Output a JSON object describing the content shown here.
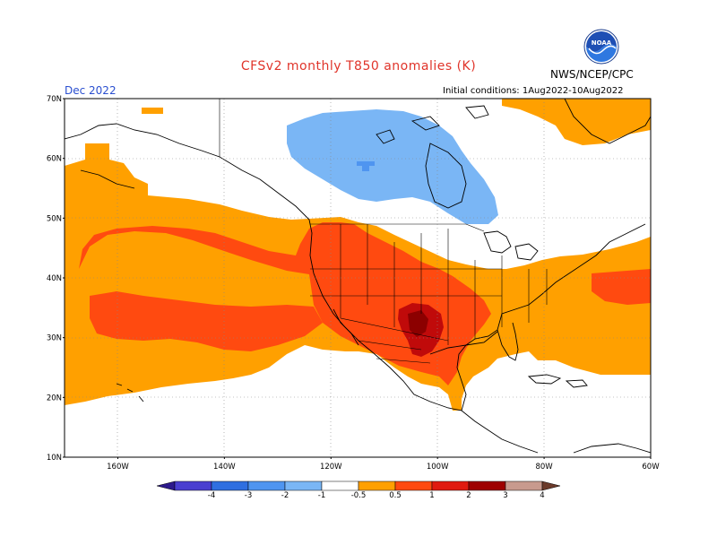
{
  "header": {
    "title": "CFSv2 monthly T850 anomalies (K)",
    "org": "NWS/NCEP/CPC",
    "month": "Dec 2022",
    "init_conditions": "Initial conditions: 1Aug2022-10Aug2022",
    "logo_icon": "noaa-logo-icon"
  },
  "map": {
    "lat_range": [
      10,
      70
    ],
    "lon_range": [
      -170,
      -60
    ],
    "lat_ticks": [
      "10N",
      "20N",
      "30N",
      "40N",
      "50N",
      "60N",
      "70N"
    ],
    "lon_ticks": [
      "160W",
      "140W",
      "120W",
      "100W",
      "80W",
      "60W"
    ]
  },
  "colorbar": {
    "tick_labels": [
      "-4",
      "-3",
      "-2",
      "-1",
      "-0.5",
      "0.5",
      "1",
      "2",
      "3",
      "4"
    ],
    "colors": [
      "#2d1a8c",
      "#4a3fd0",
      "#2f6fe0",
      "#4f95f0",
      "#7ab6f5",
      "#ffffff",
      "#ffa000",
      "#ff4a10",
      "#e01a10",
      "#9e0000",
      "#c89a8e",
      "#6b3a2a"
    ]
  }
}
